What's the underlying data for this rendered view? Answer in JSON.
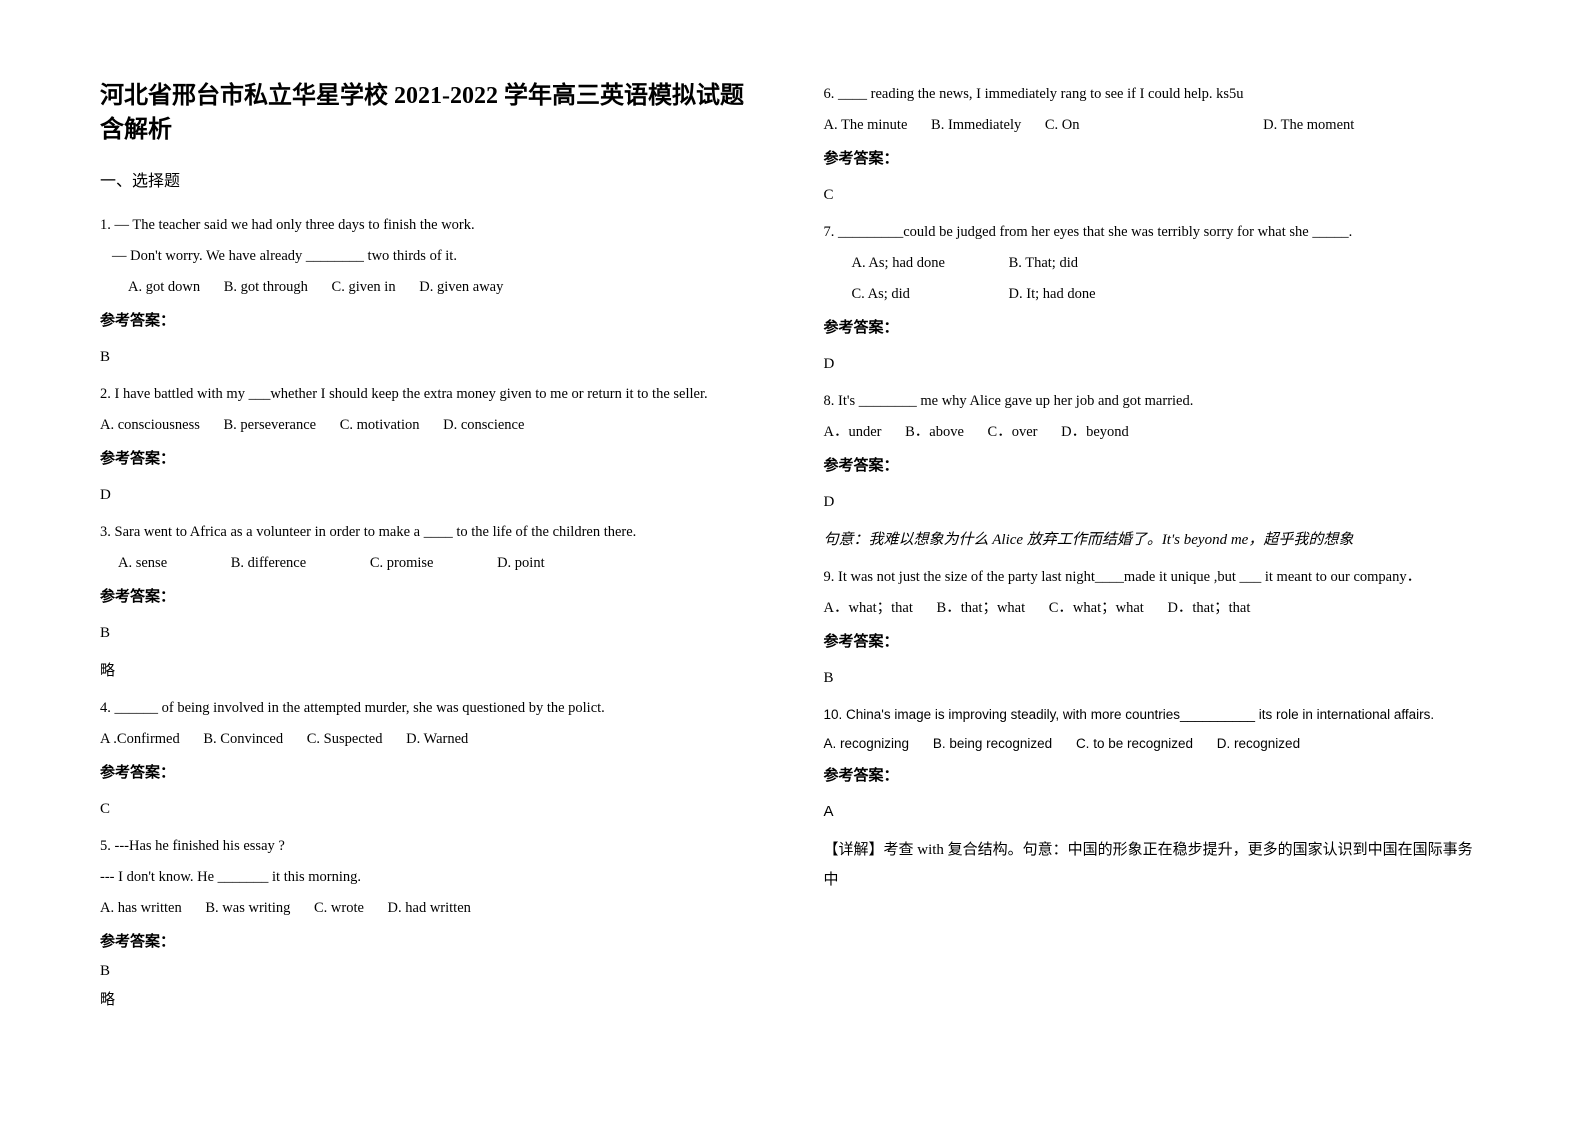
{
  "title": "河北省邢台市私立华星学校 2021-2022 学年高三英语模拟试题 含解析",
  "section1_heading": "一、选择题",
  "answer_label": "参考答案：",
  "omit_note": "略",
  "q1": {
    "line1": "1. — The teacher said we had only three days to finish the work.",
    "line2": "— Don't worry. We have already ________ two thirds of it.",
    "optA": "A. got down",
    "optB": "B. got through",
    "optC": "C. given in",
    "optD": "D. given away",
    "answer": "B"
  },
  "q2": {
    "text": "2. I have battled with my ___whether I should keep the extra money given to me or return it to the seller.",
    "optA": "A. consciousness",
    "optB": "B. perseverance",
    "optC": "C. motivation",
    "optD": "D. conscience",
    "answer": "D"
  },
  "q3": {
    "text": "3. Sara went to Africa as a volunteer in order to make a ____ to the life of the children there.",
    "optA": "A. sense",
    "optB": "B. difference",
    "optC": "C. promise",
    "optD": "D. point",
    "answer": "B"
  },
  "q4": {
    "text": "4. ______ of being involved in the attempted murder, she was questioned by the polict.",
    "optA": "A .Confirmed",
    "optB": "B. Convinced",
    "optC": "C. Suspected",
    "optD": "D. Warned",
    "answer": "C"
  },
  "q5": {
    "line1": "5. ---Has he finished his essay ?",
    "line2": "--- I don't know. He _______ it this morning.",
    "optA": "A. has written",
    "optB": "B. was writing",
    "optC": "C. wrote",
    "optD": "D. had written",
    "answer": "B"
  },
  "q6": {
    "text": "6. ____ reading the news, I immediately rang to see if I could help. ks5u",
    "optA": "A. The minute",
    "optB": "B. Immediately",
    "optC": "C. On",
    "optD": "D. The moment",
    "answer": "C"
  },
  "q7": {
    "text": "7. _________could be judged from her eyes that she was terribly sorry for what she _____.",
    "optA": "A. As; had done",
    "optB": "B. That; did",
    "optC": "C. As; did",
    "optD": "D. It; had done",
    "answer": "D"
  },
  "q8": {
    "text": "8. It's ________ me why Alice gave up her job and got married.",
    "optA": "A．under",
    "optB": "B．above",
    "optC": "C．over",
    "optD": "D．beyond",
    "answer": "D",
    "note": "句意：我难以想象为什么 Alice 放弃工作而结婚了。It's beyond me，超乎我的想象"
  },
  "q9": {
    "text": "9. It was not just the size of the party last night____made it unique ,but ___ it meant to our company．",
    "optA": "A．what；that",
    "optB": "B．that；what",
    "optC": "C．what；what",
    "optD": "D．that；that",
    "answer": "B"
  },
  "q10": {
    "text": "10. China's image is improving steadily, with more countries__________ its role in international affairs.",
    "optA": "A. recognizing",
    "optB": "B. being recognized",
    "optC": "C. to be recognized",
    "optD": "D. recognized",
    "answer": "A",
    "note": "【详解】考查 with 复合结构。句意：中国的形象正在稳步提升，更多的国家认识到中国在国际事务中"
  }
}
